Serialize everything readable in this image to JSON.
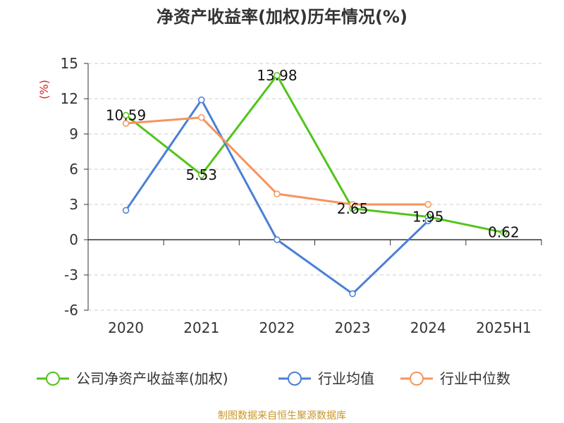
{
  "chart_data": {
    "type": "line",
    "title": "净资产收益率(加权)历年情况(%)",
    "ylabel": "(%)",
    "xlabel": "",
    "categories": [
      "2020",
      "2021",
      "2022",
      "2023",
      "2024",
      "2025H1"
    ],
    "ylim": [
      -6,
      15
    ],
    "yticks": [
      15,
      12,
      9,
      6,
      3,
      0,
      -3,
      -6
    ],
    "grid": true,
    "legend_position": "bottom",
    "series": [
      {
        "name": "公司净资产收益率(加权)",
        "color": "#52c41a",
        "values": [
          10.59,
          5.53,
          13.98,
          2.65,
          1.95,
          0.62
        ],
        "labels": [
          "10.59",
          "5.53",
          "13.98",
          "2.65",
          "1.95",
          "0.62"
        ]
      },
      {
        "name": "行业均值",
        "color": "#4a7fd6",
        "values": [
          2.5,
          11.9,
          0.0,
          -4.6,
          1.6,
          null
        ]
      },
      {
        "name": "行业中位数",
        "color": "#f7935e",
        "values": [
          9.9,
          10.4,
          3.9,
          3.0,
          3.0,
          null
        ]
      }
    ],
    "source": "制图数据来自恒生聚源数据库"
  }
}
